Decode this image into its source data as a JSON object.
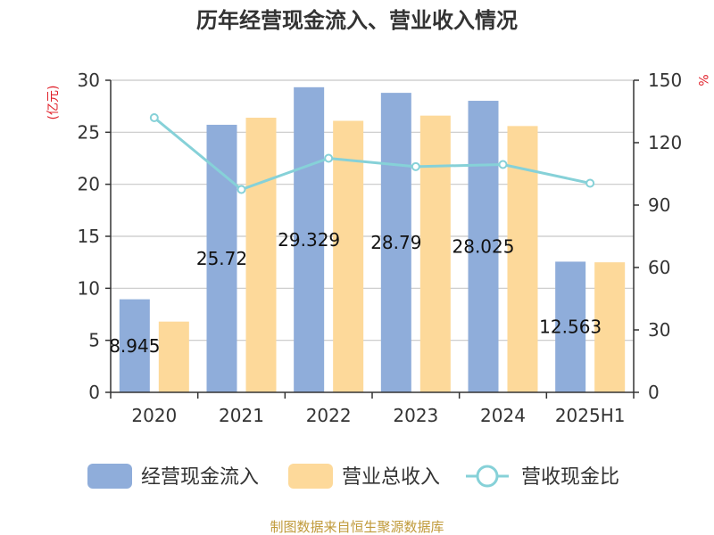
{
  "chart_data": {
    "type": "bar",
    "title": "历年经营现金流入、营业收入情况",
    "categories": [
      "2020",
      "2021",
      "2022",
      "2023",
      "2024",
      "2025H1"
    ],
    "y_left": {
      "unit": "(亿元)",
      "range": [
        0,
        30
      ],
      "ticks": [
        "0",
        "5",
        "10",
        "15",
        "20",
        "25",
        "30"
      ]
    },
    "y_right": {
      "unit": "%",
      "range": [
        0,
        150
      ],
      "ticks": [
        "0",
        "30",
        "60",
        "90",
        "120",
        "150"
      ]
    },
    "series": [
      {
        "name": "经营现金流入",
        "type": "bar",
        "axis": "left",
        "color": "#8fadda",
        "values": [
          8.945,
          25.72,
          29.329,
          28.79,
          28.025,
          12.563
        ],
        "labels": [
          "8.945",
          "25.72",
          "29.329",
          "28.79",
          "28.025",
          "12.563"
        ]
      },
      {
        "name": "营业总收入",
        "type": "bar",
        "axis": "left",
        "color": "#fdd99a",
        "values": [
          6.8,
          26.4,
          26.1,
          26.6,
          25.6,
          12.5
        ]
      },
      {
        "name": "营收现金比",
        "type": "line",
        "axis": "right",
        "color": "#86d1d8",
        "values": [
          132,
          97.5,
          112.5,
          108.5,
          109.5,
          100.5
        ]
      }
    ],
    "grid": true,
    "legend_position": "bottom"
  },
  "source": "制图数据来自恒生聚源数据库"
}
